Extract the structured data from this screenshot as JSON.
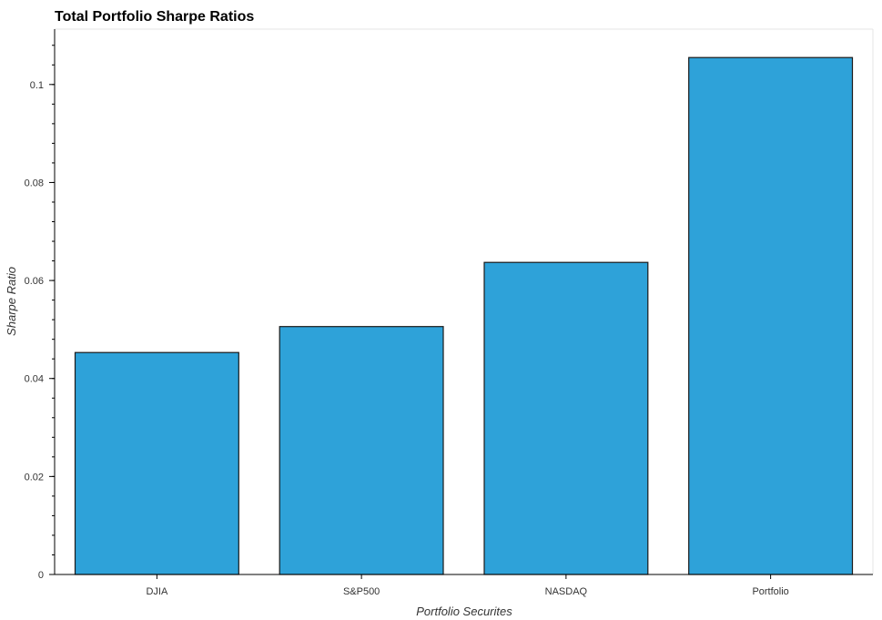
{
  "chart_data": {
    "type": "bar",
    "title": "Total Portfolio Sharpe Ratios",
    "xlabel": "Portfolio Securites",
    "ylabel": "Sharpe Ratio",
    "categories": [
      "DJIA",
      "S&P500",
      "NASDAQ",
      "Portfolio"
    ],
    "values": [
      0.0453,
      0.0506,
      0.0637,
      0.1055
    ],
    "ylim": [
      0,
      0.1113
    ],
    "yticks": [
      0,
      0.02,
      0.04,
      0.06,
      0.08,
      0.1
    ],
    "ytick_labels": [
      "0",
      "0.02",
      "0.04",
      "0.06",
      "0.08",
      "0.1"
    ],
    "bar_color": "#2ea2d9",
    "bar_edge_color": "#1a1a1a",
    "grid": false,
    "legend": "none"
  }
}
